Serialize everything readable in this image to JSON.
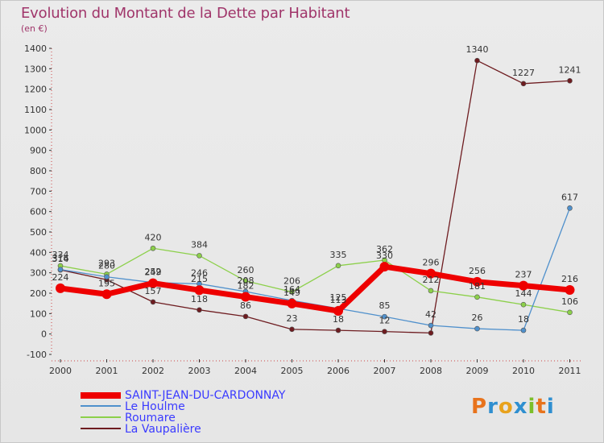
{
  "header": {
    "title": "Evolution du Montant de la Dette par Habitant",
    "unit": "(en €)"
  },
  "logo": {
    "text": "Proxiti",
    "letters": [
      {
        "ch": "P",
        "color": "#e8731c"
      },
      {
        "ch": "r",
        "color": "#2f8fd0"
      },
      {
        "ch": "o",
        "color": "#e8a21c"
      },
      {
        "ch": "x",
        "color": "#2f8fd0"
      },
      {
        "ch": "i",
        "color": "#7cbf2a"
      },
      {
        "ch": "t",
        "color": "#e8731c"
      },
      {
        "ch": "i",
        "color": "#2f8fd0"
      }
    ]
  },
  "chart_data": {
    "type": "line",
    "title": "Evolution du Montant de la Dette par Habitant",
    "ylabel": "(en €)",
    "xlabel": "",
    "x": [
      "2000",
      "2001",
      "2002",
      "2003",
      "2004",
      "2005",
      "2006",
      "2007",
      "2008",
      "2009",
      "2010",
      "2011"
    ],
    "ylim": [
      -100,
      1400
    ],
    "yticks": [
      -100,
      0,
      100,
      200,
      300,
      400,
      500,
      600,
      700,
      800,
      900,
      1000,
      1100,
      1200,
      1300,
      1400
    ],
    "grid": false,
    "legend_position": "bottom-left",
    "series": [
      {
        "name": "SAINT-JEAN-DU-CARDONNAY",
        "color": "#ee0000",
        "values": [
          224,
          195,
          249,
          215,
          182,
          149,
          113,
          330,
          296,
          256,
          237,
          216
        ],
        "labels": [
          "224",
          "195",
          "249",
          "215",
          "182",
          "149",
          "113",
          "330",
          "296",
          "256",
          "237",
          "216"
        ]
      },
      {
        "name": "Le Houlme",
        "color": "#4f90cc",
        "values": [
          316,
          280,
          252,
          246,
          208,
          164,
          125,
          85,
          42,
          26,
          18,
          617
        ],
        "labels": [
          "316",
          "280",
          "252",
          "246",
          "208",
          "164",
          "125",
          "85",
          "42",
          "26",
          "18",
          "617"
        ]
      },
      {
        "name": "Roumare",
        "color": "#8cd04a",
        "values": [
          334,
          293,
          420,
          384,
          260,
          206,
          335,
          362,
          212,
          181,
          144,
          106
        ],
        "labels": [
          "334",
          "293",
          "420",
          "384",
          "260",
          "206",
          "335",
          "362",
          "212",
          "181",
          "144",
          "106"
        ]
      },
      {
        "name": "La Vaupalière",
        "color": "#6e1c20",
        "values": [
          314,
          266,
          157,
          118,
          86,
          23,
          18,
          12,
          5,
          1340,
          1227,
          1241
        ],
        "labels": [
          "314",
          "",
          "157",
          "118",
          "86",
          "23",
          "18",
          "12",
          "",
          "1340",
          "1227",
          "1241"
        ]
      }
    ]
  }
}
